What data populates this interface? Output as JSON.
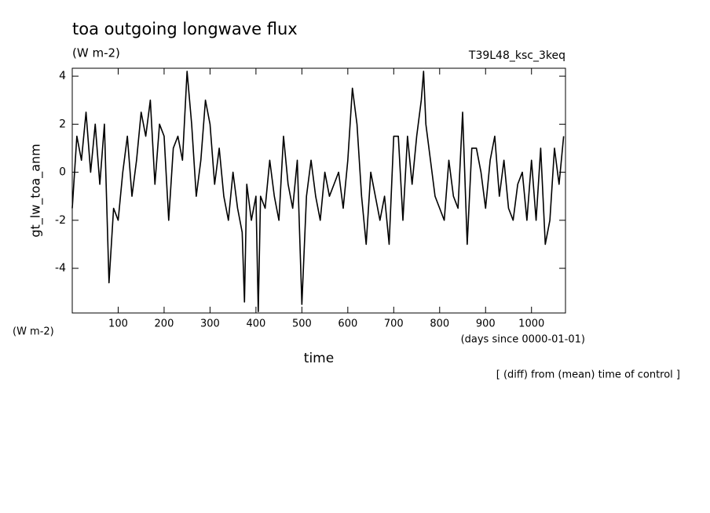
{
  "chart_data": {
    "type": "line",
    "title": "toa outgoing longwave flux",
    "units": "(W m-2)",
    "run_label": "T39L48_ksc_3keq",
    "y_label": "gt_lw_toa_anm",
    "y_units": "(W m-2)",
    "x_label": "time",
    "x_units": "(days since 0000-01-01)",
    "note": "[ (diff) from (mean) time of control ]",
    "color": "#000000",
    "xlim": [
      0,
      1074
    ],
    "ylim": [
      -5.86,
      4.33
    ],
    "xticks": [
      100,
      200,
      300,
      400,
      500,
      600,
      700,
      800,
      900,
      1000
    ],
    "yticks": [
      -4,
      -2,
      0,
      2,
      4
    ],
    "x": [
      0,
      10,
      20,
      30,
      40,
      50,
      60,
      70,
      80,
      90,
      100,
      110,
      120,
      130,
      140,
      150,
      160,
      170,
      180,
      190,
      200,
      210,
      220,
      230,
      240,
      250,
      260,
      270,
      280,
      290,
      300,
      310,
      320,
      330,
      340,
      350,
      360,
      370,
      375,
      380,
      390,
      400,
      405,
      410,
      420,
      430,
      440,
      450,
      460,
      470,
      480,
      490,
      500,
      510,
      520,
      530,
      540,
      550,
      560,
      570,
      580,
      590,
      600,
      610,
      620,
      630,
      640,
      650,
      660,
      670,
      680,
      690,
      700,
      710,
      720,
      730,
      740,
      750,
      760,
      765,
      770,
      780,
      790,
      800,
      810,
      820,
      830,
      840,
      850,
      860,
      870,
      880,
      890,
      900,
      910,
      920,
      930,
      940,
      950,
      960,
      970,
      980,
      990,
      1000,
      1010,
      1020,
      1030,
      1040,
      1050,
      1060,
      1070
    ],
    "values": [
      -1.5,
      1.5,
      0.5,
      2.5,
      0,
      2,
      -0.5,
      2,
      -4.6,
      -1.5,
      -2,
      0,
      1.5,
      -1,
      0.5,
      2.5,
      1.5,
      3,
      -0.5,
      2,
      1.5,
      -2,
      1,
      1.5,
      0.5,
      4.2,
      2,
      -1,
      0.5,
      3,
      2,
      -0.5,
      1,
      -1,
      -2,
      0,
      -1.5,
      -2.5,
      -5.4,
      -0.5,
      -2,
      -1,
      -5.8,
      -1,
      -1.5,
      0.5,
      -1,
      -2,
      1.5,
      -0.5,
      -1.5,
      0.5,
      -5.5,
      -1,
      0.5,
      -1,
      -2,
      0,
      -1,
      -0.5,
      0,
      -1.5,
      0.5,
      3.5,
      2,
      -1,
      -3,
      0,
      -1,
      -2,
      -1,
      -3,
      1.5,
      1.5,
      -2,
      1.5,
      -0.5,
      1.5,
      3,
      4.2,
      2,
      0.5,
      -1,
      -1.5,
      -2,
      0.5,
      -1,
      -1.5,
      2.5,
      -3,
      1,
      1,
      0,
      -1.5,
      0.5,
      1.5,
      -1,
      0.5,
      -1.5,
      -2,
      -0.5,
      0,
      -2,
      0.5,
      -2,
      1,
      -3,
      -2,
      1,
      -0.5,
      1.5
    ]
  }
}
